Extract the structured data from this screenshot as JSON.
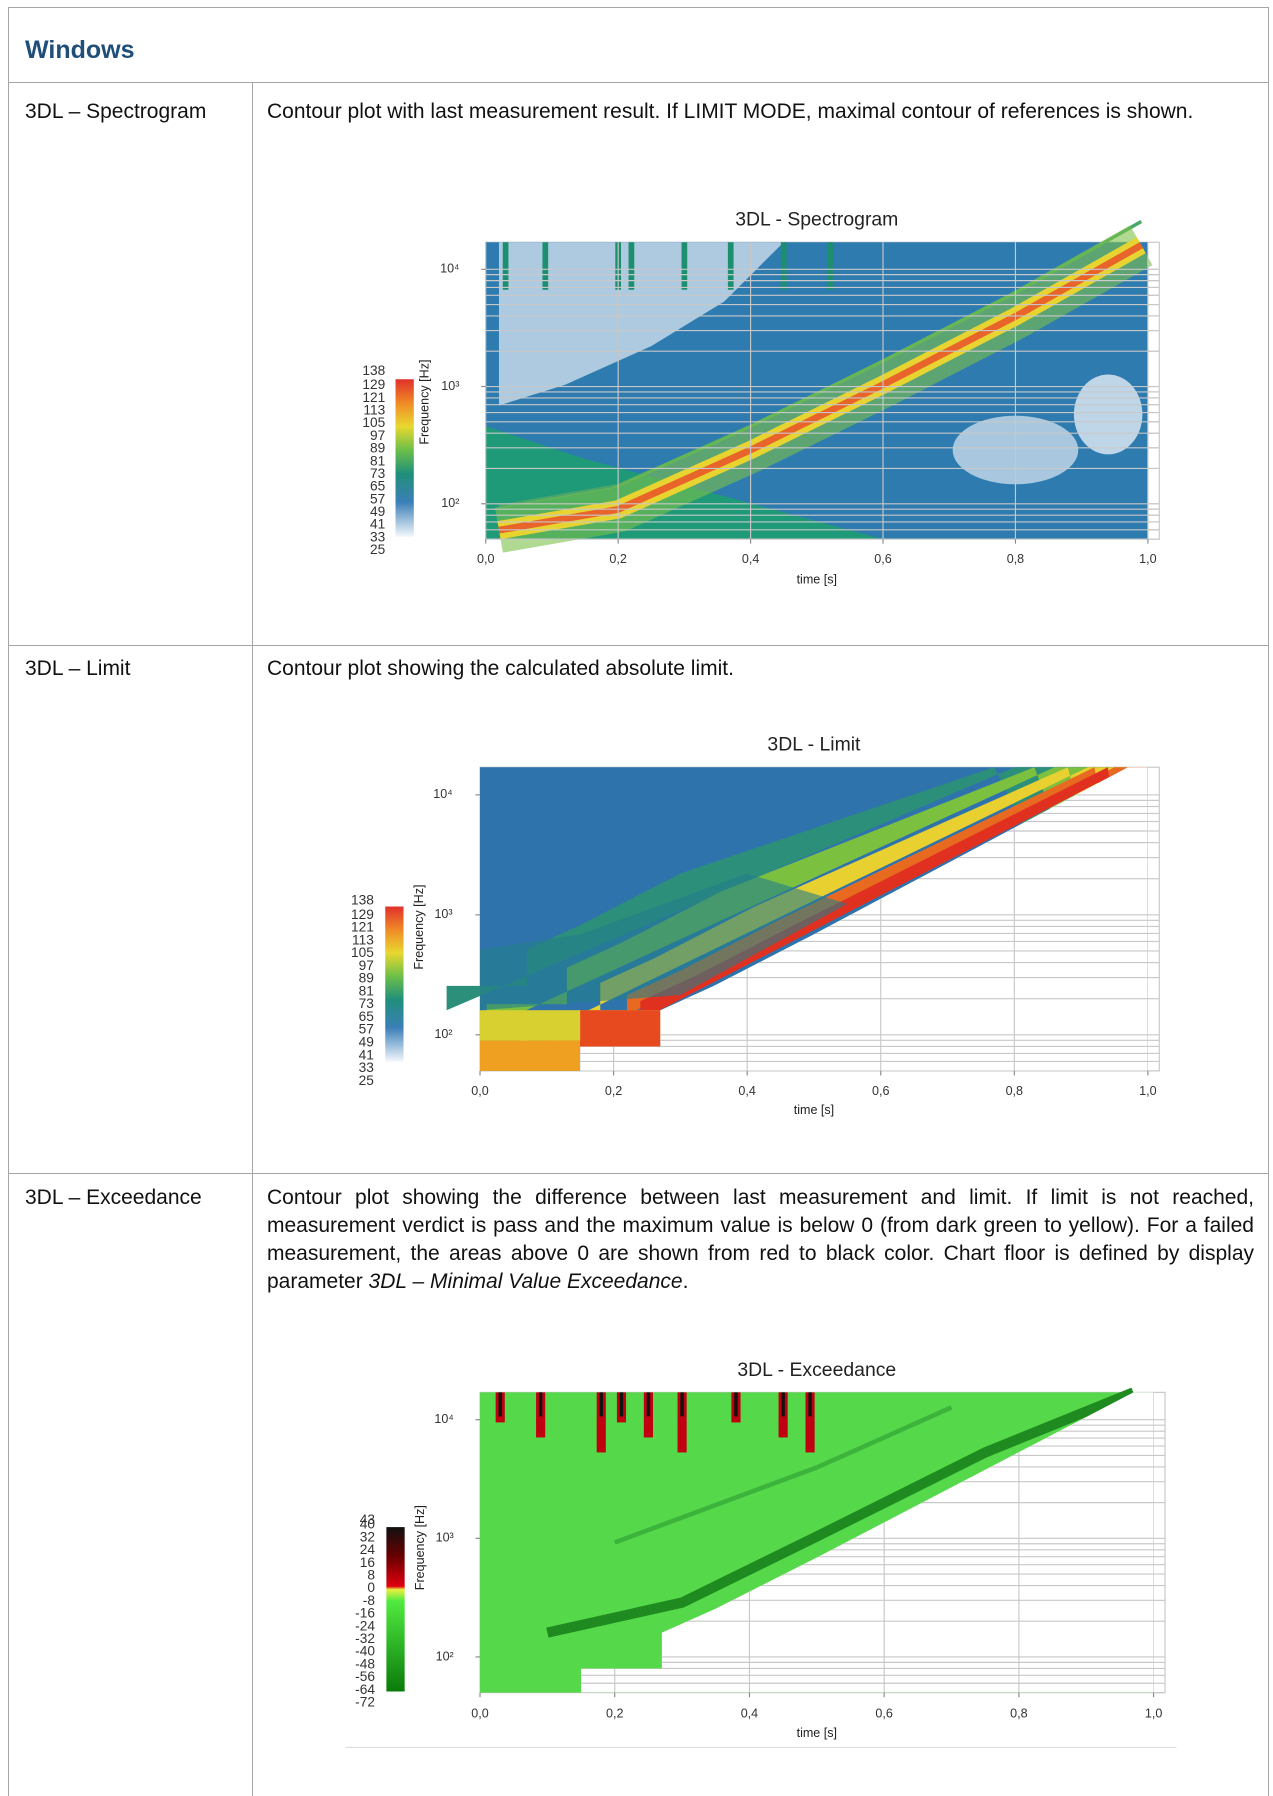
{
  "header": {
    "title": "Windows"
  },
  "rows": [
    {
      "name": "3DL – Spectrogram",
      "description": "Contour plot with last measurement result. If LIMIT MODE, maximal contour of references is shown.",
      "figure": {
        "title": "3DL - Spectrogram",
        "xlabel": "time [s]",
        "ylabel": "Frequency [Hz]",
        "xlim": [
          0,
          1
        ],
        "xticks": [
          {
            "value": 0,
            "label": "0,0"
          },
          {
            "value": 0.2,
            "label": "0,2"
          },
          {
            "value": 0.4,
            "label": "0,4"
          },
          {
            "value": 0.6,
            "label": "0,6"
          },
          {
            "value": 0.8,
            "label": "0,8"
          },
          {
            "value": 1,
            "label": "1,0"
          }
        ],
        "ylim": [
          50,
          17000
        ],
        "ylog": true,
        "yticks": [
          {
            "value": 100,
            "label": "10²"
          },
          {
            "value": 1000,
            "label": "10³"
          },
          {
            "value": 10000,
            "label": "10⁴"
          }
        ],
        "colorbar_ticks": [
          138,
          129,
          121,
          113,
          105,
          97,
          89,
          81,
          73,
          65,
          57,
          49,
          41,
          33,
          25
        ]
      }
    },
    {
      "name": "3DL – Limit",
      "description": "Contour plot showing the calculated absolute limit.",
      "figure": {
        "title": "3DL - Limit",
        "xlabel": "time [s]",
        "ylabel": "Frequency [Hz]",
        "xlim": [
          0,
          1
        ],
        "xticks": [
          {
            "value": 0,
            "label": "0,0"
          },
          {
            "value": 0.2,
            "label": "0,2"
          },
          {
            "value": 0.4,
            "label": "0,4"
          },
          {
            "value": 0.6,
            "label": "0,6"
          },
          {
            "value": 0.8,
            "label": "0,8"
          },
          {
            "value": 1,
            "label": "1,0"
          }
        ],
        "ylim": [
          50,
          17000
        ],
        "ylog": true,
        "yticks": [
          {
            "value": 100,
            "label": "10²"
          },
          {
            "value": 1000,
            "label": "10³"
          },
          {
            "value": 10000,
            "label": "10⁴"
          }
        ],
        "colorbar_ticks": [
          138,
          129,
          121,
          113,
          105,
          97,
          89,
          81,
          73,
          65,
          57,
          49,
          41,
          33,
          25
        ]
      }
    },
    {
      "name": "3DL – Exceedance",
      "description": [
        "Contour plot showing the difference between last measurement and limit. If limit is not reached, measurement verdict is pass and the maximum value is below 0 (from dark green to yellow). For a failed measurement, the areas above 0 are shown from red to black color. Chart floor is defined by display parameter ",
        "3DL – Minimal Value Exceedance",
        "."
      ],
      "figure": {
        "title": "3DL - Exceedance",
        "xlabel": "time [s]",
        "ylabel": "Frequency [Hz]",
        "xlim": [
          0,
          1
        ],
        "xticks": [
          {
            "value": 0,
            "label": "0,0"
          },
          {
            "value": 0.2,
            "label": "0,2"
          },
          {
            "value": 0.4,
            "label": "0,4"
          },
          {
            "value": 0.6,
            "label": "0,6"
          },
          {
            "value": 0.8,
            "label": "0,8"
          },
          {
            "value": 1,
            "label": "1,0"
          }
        ],
        "ylim": [
          50,
          17000
        ],
        "ylog": true,
        "yticks": [
          {
            "value": 100,
            "label": "10²"
          },
          {
            "value": 1000,
            "label": "10³"
          },
          {
            "value": 10000,
            "label": "10⁴"
          }
        ],
        "colorbar_ticks": [
          43,
          40,
          32,
          24,
          16,
          8,
          0,
          -8,
          -16,
          -24,
          -32,
          -40,
          -48,
          -56,
          -64,
          -72
        ]
      }
    }
  ]
}
